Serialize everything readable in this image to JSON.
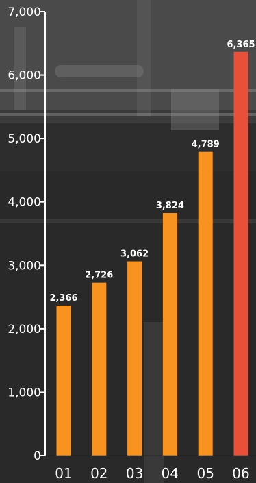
{
  "chart_data": {
    "type": "bar",
    "categories": [
      "01",
      "02",
      "03",
      "04",
      "05",
      "06"
    ],
    "values": [
      2366,
      2726,
      3062,
      3824,
      4789,
      6365
    ],
    "value_labels": [
      "2,366",
      "2,726",
      "3,062",
      "3,824",
      "4,789",
      "6,365"
    ],
    "y_ticks": [
      0,
      1000,
      2000,
      3000,
      4000,
      5000,
      6000,
      7000
    ],
    "y_tick_labels": [
      "0",
      "1,000",
      "2,000",
      "3,000",
      "4,000",
      "5,000",
      "6,000",
      "7,000"
    ],
    "ylim": [
      0,
      7000
    ],
    "title": "",
    "xlabel": "",
    "ylabel": "",
    "grid": false,
    "colors": {
      "bar": "#f7931e",
      "highlight_bar": "#e8503a",
      "axis": "#ffffff",
      "text": "#ffffff"
    },
    "highlight_index": 5
  }
}
